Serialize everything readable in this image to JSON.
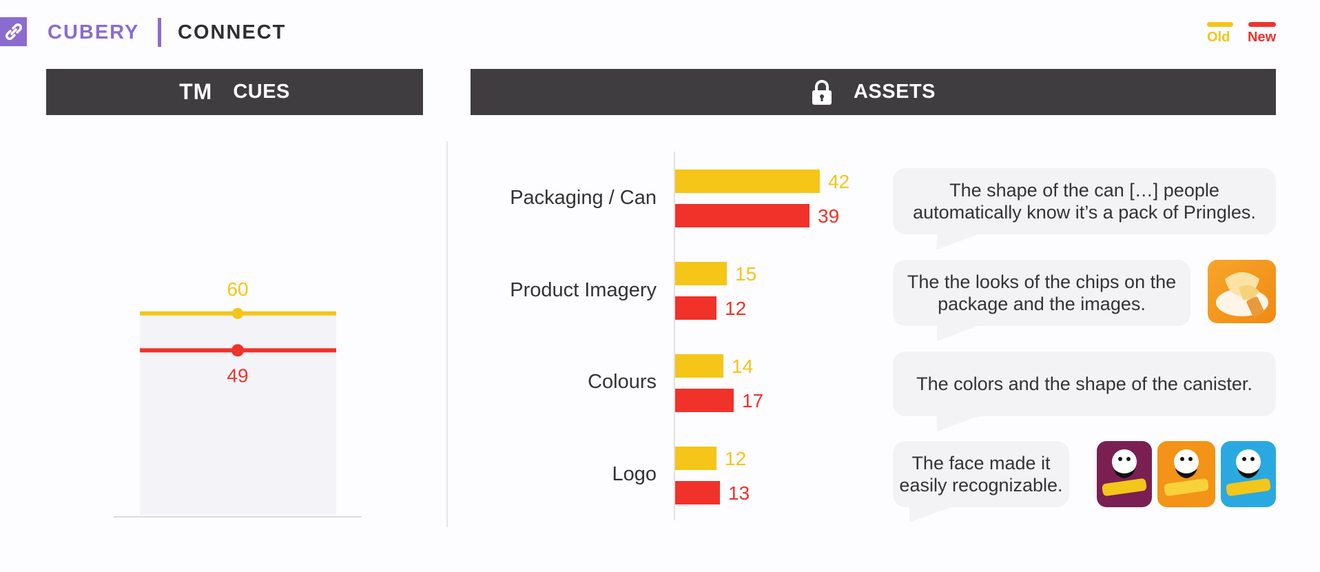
{
  "header": {
    "brand": "CUBERY",
    "product": "CONNECT",
    "legend": [
      {
        "label": "Old",
        "color": "#f5c518"
      },
      {
        "label": "New",
        "color": "#f0322a"
      }
    ]
  },
  "panels": {
    "cues": {
      "mark": "TM",
      "title": "CUES"
    },
    "assets": {
      "title": "ASSETS"
    }
  },
  "colors": {
    "old": "#f5c518",
    "new": "#f0322a",
    "header_bg": "#3f3d40",
    "brand": "#8b6bd0"
  },
  "chart_data": [
    {
      "type": "line",
      "categories": [
        ""
      ],
      "series": [
        {
          "name": "Old",
          "values": [
            60
          ]
        },
        {
          "name": "New",
          "values": [
            49
          ]
        }
      ],
      "data_labels": [
        "60",
        "49"
      ]
    },
    {
      "type": "bar",
      "orientation": "horizontal",
      "categories": [
        "Packaging / Can",
        "Product Imagery",
        "Colours",
        "Logo"
      ],
      "series": [
        {
          "name": "Old",
          "values": [
            42,
            15,
            14,
            12
          ]
        },
        {
          "name": "New",
          "values": [
            39,
            12,
            17,
            13
          ]
        }
      ],
      "data_labels": {
        "Old": [
          "42",
          "15",
          "14",
          "12"
        ],
        "New": [
          "39",
          "12",
          "17",
          "13"
        ]
      }
    }
  ],
  "quotes": [
    {
      "text": "The shape of the can […] people automatically know it’s a pack of Pringles."
    },
    {
      "text": "The the looks of the chips on the package and the images.",
      "image": "chips-on-plate-image"
    },
    {
      "text": "The colors and the shape of the canister."
    },
    {
      "text": "The face made it easily recognizable.",
      "images": [
        "pringles-can-purple",
        "pringles-can-orange",
        "pringles-can-blue"
      ]
    }
  ]
}
